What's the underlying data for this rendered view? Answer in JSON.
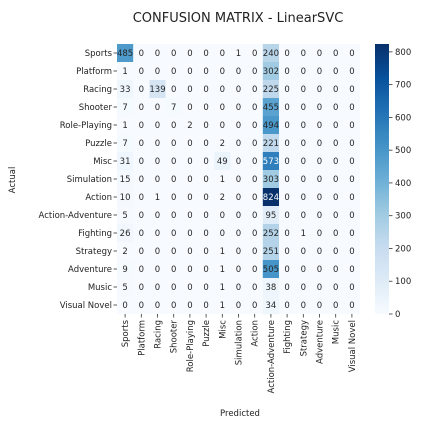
{
  "chart_data": {
    "type": "heatmap",
    "title": "CONFUSION MATRIX - LinearSVC",
    "xlabel": "Predicted",
    "ylabel": "Actual",
    "rows": [
      "Sports",
      "Platform",
      "Racing",
      "Shooter",
      "Role-Playing",
      "Puzzle",
      "Misc",
      "Simulation",
      "Action",
      "Action-Adventure",
      "Fighting",
      "Strategy",
      "Adventure",
      "Music",
      "Visual Novel"
    ],
    "columns": [
      "Sports",
      "Platform",
      "Racing",
      "Shooter",
      "Role-Playing",
      "Puzzle",
      "Misc",
      "Simulation",
      "Action",
      "Action-Adventure",
      "Fighting",
      "Strategy",
      "Adventure",
      "Music",
      "Visual Novel"
    ],
    "values": [
      [
        485,
        0,
        0,
        0,
        0,
        0,
        0,
        1,
        0,
        240,
        0,
        0,
        0,
        0,
        0
      ],
      [
        1,
        0,
        0,
        0,
        0,
        0,
        0,
        0,
        0,
        302,
        0,
        0,
        0,
        0,
        0
      ],
      [
        33,
        0,
        139,
        0,
        0,
        0,
        0,
        0,
        0,
        225,
        0,
        0,
        0,
        0,
        0
      ],
      [
        7,
        0,
        0,
        7,
        0,
        0,
        0,
        0,
        0,
        455,
        0,
        0,
        0,
        0,
        0
      ],
      [
        1,
        0,
        0,
        0,
        2,
        0,
        0,
        0,
        0,
        494,
        0,
        0,
        0,
        0,
        0
      ],
      [
        7,
        0,
        0,
        0,
        0,
        0,
        2,
        0,
        0,
        221,
        0,
        0,
        0,
        0,
        0
      ],
      [
        31,
        0,
        0,
        0,
        0,
        0,
        49,
        0,
        0,
        573,
        0,
        0,
        0,
        0,
        0
      ],
      [
        15,
        0,
        0,
        0,
        0,
        0,
        1,
        0,
        0,
        303,
        0,
        0,
        0,
        0,
        0
      ],
      [
        10,
        0,
        1,
        0,
        0,
        0,
        2,
        0,
        0,
        824,
        0,
        0,
        0,
        0,
        0
      ],
      [
        5,
        0,
        0,
        0,
        0,
        0,
        0,
        0,
        0,
        95,
        0,
        0,
        0,
        0,
        0
      ],
      [
        26,
        0,
        0,
        0,
        0,
        0,
        0,
        0,
        0,
        252,
        0,
        1,
        0,
        0,
        0
      ],
      [
        2,
        0,
        0,
        0,
        0,
        0,
        1,
        0,
        0,
        251,
        0,
        0,
        0,
        0,
        0
      ],
      [
        9,
        0,
        0,
        0,
        0,
        0,
        1,
        0,
        0,
        505,
        0,
        0,
        0,
        0,
        0
      ],
      [
        5,
        0,
        0,
        0,
        0,
        0,
        1,
        0,
        0,
        38,
        0,
        0,
        0,
        0,
        0
      ],
      [
        0,
        0,
        0,
        0,
        0,
        0,
        1,
        0,
        0,
        34,
        0,
        0,
        0,
        0,
        0
      ]
    ],
    "colorbar": {
      "min": 0,
      "max": 824,
      "ticks": [
        0,
        100,
        200,
        300,
        400,
        500,
        600,
        700,
        800
      ],
      "colormap": "Blues",
      "colors": [
        "#f7fbff",
        "#deebf7",
        "#c6dbef",
        "#9ecae1",
        "#6baed6",
        "#4292c6",
        "#2171b5",
        "#08519c",
        "#08306b"
      ]
    },
    "annotate": true,
    "grid": false,
    "legend": "colorbar-right"
  }
}
